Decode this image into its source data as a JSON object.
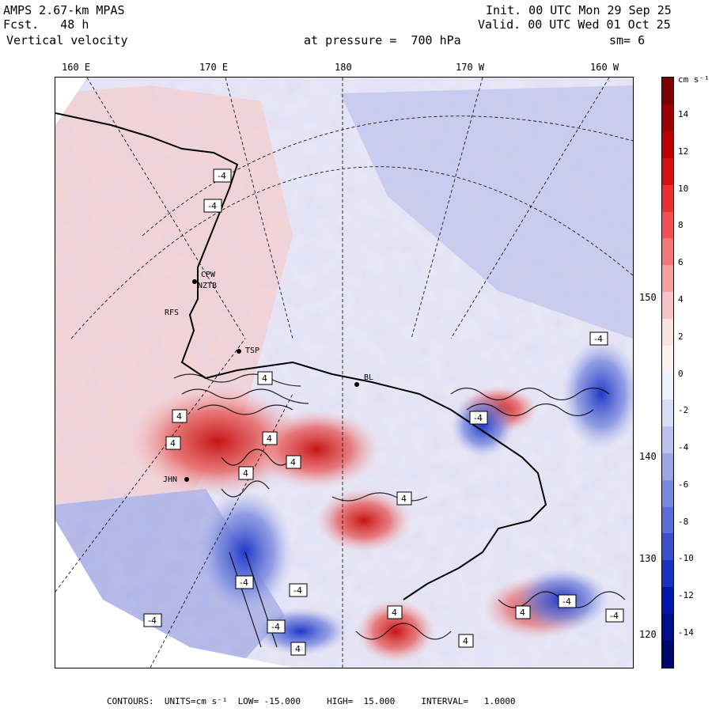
{
  "header": {
    "model": "AMPS 2.67-km MPAS",
    "forecast": "Fcst.   48 h",
    "field": "Vertical velocity",
    "init": "Init. 00 UTC Mon 29 Sep 25",
    "valid": "Valid. 00 UTC Wed 01 Oct 25",
    "level": "at pressure =  700 hPa",
    "smooth": "sm= 6"
  },
  "longitude_labels": [
    "160 E",
    "170 E",
    "180",
    "170 W",
    "160 W"
  ],
  "latitude_labels": [
    "150 W",
    "140 W",
    "130 W",
    "120 W"
  ],
  "colorbar": {
    "units": "cm s⁻¹",
    "labels": [
      "14",
      "12",
      "10",
      "8",
      "6",
      "4",
      "2",
      "0",
      "-2",
      "-4",
      "-6",
      "-8",
      "-10",
      "-12",
      "-14"
    ],
    "colors": [
      "#7a0000",
      "#9a0000",
      "#bb0000",
      "#d41010",
      "#e83030",
      "#f05050",
      "#f27878",
      "#f4a0a0",
      "#f6c4c4",
      "#f8e2e2",
      "#fdf0f0",
      "#eef0fb",
      "#d8ddf6",
      "#b9c2ee",
      "#9aa6e6",
      "#7b8ade",
      "#5c6ed6",
      "#3b50cc",
      "#1a32c0",
      "#0018aa",
      "#000e8a",
      "#00086e"
    ]
  },
  "stations": [
    "CPW",
    "NZTB",
    "RFS",
    "TSP",
    "BL",
    "JHN"
  ],
  "map_contour_labels": [
    "-4",
    "-4",
    "4",
    "4",
    "4",
    "4",
    "4",
    "4",
    "4",
    "-4",
    "-4",
    "-4",
    "4",
    "-4",
    "4",
    "-4",
    "4",
    "-4",
    "-4",
    "4",
    "-4"
  ],
  "footer": "CONTOURS:  UNITS=cm s⁻¹  LOW= -15.000     HIGH=  15.000     INTERVAL=   1.0000"
}
